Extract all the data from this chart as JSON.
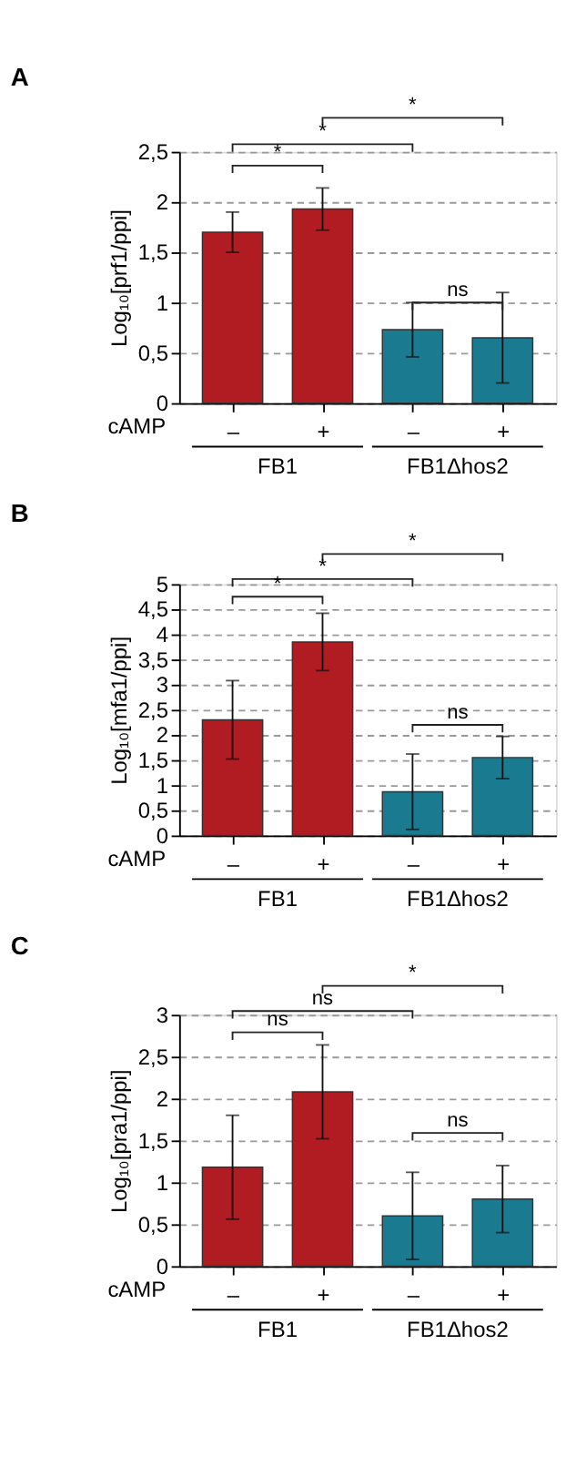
{
  "chart_data": [
    {
      "type": "bar",
      "title": "A",
      "xlabel": "cAMP",
      "ylabel": "Log₁₀[prf1/ppi]",
      "categories": [
        "–",
        "+",
        "–",
        "+"
      ],
      "values": [
        1.7,
        1.93,
        0.73,
        0.65
      ],
      "errors": [
        0.2,
        0.21,
        0.27,
        0.45
      ],
      "colors": [
        "#b01c22",
        "#b01c22",
        "#1a7a8f",
        "#1a7a8f"
      ],
      "ylim": [
        0,
        2.5
      ],
      "yticks": [
        0,
        {
          "value": 0.5,
          "label": "0,5"
        },
        1,
        {
          "value": 1.5,
          "label": "1,5"
        },
        2,
        {
          "value": 2.5,
          "label": "2,5"
        }
      ],
      "grid": "y",
      "annotations": [
        "FB1",
        "FB1Δhos2",
        "*",
        "*",
        "*",
        "ns"
      ]
    },
    {
      "type": "bar",
      "title": "B",
      "xlabel": "cAMP",
      "ylabel": "Log₁₀[mfa1/ppi]",
      "categories": [
        "–",
        "+",
        "–",
        "+"
      ],
      "values": [
        2.3,
        3.85,
        0.87,
        1.55
      ],
      "errors": [
        0.78,
        0.57,
        0.75,
        0.42
      ],
      "colors": [
        "#b01c22",
        "#b01c22",
        "#1a7a8f",
        "#1a7a8f"
      ],
      "ylim": [
        0,
        5
      ],
      "yticks": [
        0,
        {
          "value": 0.5,
          "label": "0,5"
        },
        1,
        {
          "value": 1.5,
          "label": "1,5"
        },
        2,
        {
          "value": 2.5,
          "label": "2,5"
        },
        3,
        {
          "value": 3.5,
          "label": "3,5"
        },
        4,
        {
          "value": 4.5,
          "label": "4,5"
        },
        5
      ],
      "grid": "y",
      "annotations": [
        "FB1",
        "FB1Δhos2",
        "*",
        "*",
        "*",
        "ns"
      ]
    },
    {
      "type": "bar",
      "title": "C",
      "xlabel": "cAMP",
      "ylabel": "Log₁₀[pra1/ppi]",
      "categories": [
        "–",
        "+",
        "–",
        "+"
      ],
      "values": [
        1.18,
        2.08,
        0.6,
        0.8
      ],
      "errors": [
        0.62,
        0.56,
        0.52,
        0.4
      ],
      "colors": [
        "#b01c22",
        "#b01c22",
        "#1a7a8f",
        "#1a7a8f"
      ],
      "ylim": [
        0,
        3
      ],
      "yticks": [
        0,
        {
          "value": 0.5,
          "label": "0,5"
        },
        1,
        {
          "value": 1.5,
          "label": "1,5"
        },
        2,
        {
          "value": 2.5,
          "label": "2,5"
        },
        3
      ],
      "grid": "y",
      "annotations": [
        "FB1",
        "FB1Δhos2",
        "ns",
        "ns",
        "*",
        "ns"
      ]
    }
  ]
}
